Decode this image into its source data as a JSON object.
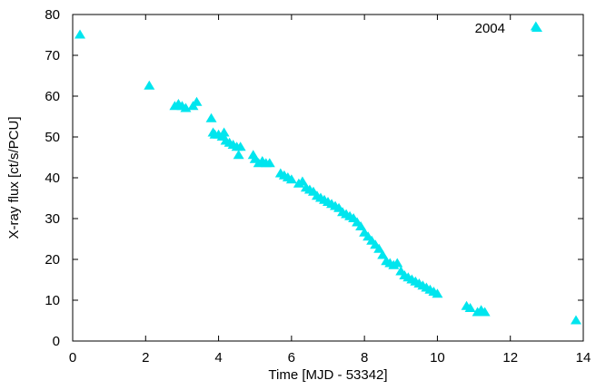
{
  "chart_data": {
    "type": "scatter",
    "xlabel": "Time [MJD - 53342]",
    "ylabel": "X-ray flux [ct/s/PCU]",
    "xlim": [
      0,
      14
    ],
    "ylim": [
      0,
      80
    ],
    "x_ticks": [
      "0",
      "2",
      "4",
      "6",
      "8",
      "10",
      "12",
      "14"
    ],
    "y_ticks": [
      "0",
      "10",
      "20",
      "30",
      "40",
      "50",
      "60",
      "70",
      "80"
    ],
    "grid": false,
    "legend_position": "top-right",
    "marker": "triangle",
    "series": [
      {
        "name": "2004",
        "color": "#00e5ee",
        "points": [
          [
            0.2,
            75.0
          ],
          [
            2.1,
            62.5
          ],
          [
            2.8,
            57.5
          ],
          [
            2.9,
            58.0
          ],
          [
            3.0,
            57.5
          ],
          [
            3.1,
            57.0
          ],
          [
            3.3,
            57.5
          ],
          [
            3.4,
            58.5
          ],
          [
            3.8,
            54.5
          ],
          [
            3.85,
            51.0
          ],
          [
            3.9,
            50.5
          ],
          [
            4.0,
            50.5
          ],
          [
            4.1,
            50.0
          ],
          [
            4.15,
            51.0
          ],
          [
            4.2,
            49.0
          ],
          [
            4.3,
            48.5
          ],
          [
            4.4,
            48.0
          ],
          [
            4.5,
            47.5
          ],
          [
            4.55,
            45.5
          ],
          [
            4.6,
            47.5
          ],
          [
            4.95,
            45.5
          ],
          [
            5.0,
            44.5
          ],
          [
            5.1,
            43.5
          ],
          [
            5.2,
            44.0
          ],
          [
            5.3,
            43.5
          ],
          [
            5.4,
            43.5
          ],
          [
            5.7,
            41.0
          ],
          [
            5.8,
            40.5
          ],
          [
            5.9,
            40.0
          ],
          [
            6.0,
            39.5
          ],
          [
            6.2,
            38.5
          ],
          [
            6.3,
            39.0
          ],
          [
            6.4,
            37.5
          ],
          [
            6.5,
            37.0
          ],
          [
            6.6,
            36.5
          ],
          [
            6.7,
            35.5
          ],
          [
            6.8,
            35.0
          ],
          [
            6.9,
            34.5
          ],
          [
            7.0,
            34.0
          ],
          [
            7.1,
            33.5
          ],
          [
            7.2,
            33.0
          ],
          [
            7.3,
            32.5
          ],
          [
            7.4,
            31.5
          ],
          [
            7.5,
            31.0
          ],
          [
            7.6,
            30.5
          ],
          [
            7.7,
            30.0
          ],
          [
            7.8,
            29.0
          ],
          [
            7.9,
            28.0
          ],
          [
            8.0,
            26.5
          ],
          [
            8.1,
            25.5
          ],
          [
            8.2,
            24.5
          ],
          [
            8.3,
            23.5
          ],
          [
            8.4,
            22.5
          ],
          [
            8.5,
            21.0
          ],
          [
            8.6,
            19.5
          ],
          [
            8.7,
            19.0
          ],
          [
            8.8,
            18.5
          ],
          [
            8.9,
            19.0
          ],
          [
            9.0,
            17.0
          ],
          [
            9.1,
            16.0
          ],
          [
            9.2,
            15.5
          ],
          [
            9.3,
            15.0
          ],
          [
            9.4,
            14.5
          ],
          [
            9.5,
            14.0
          ],
          [
            9.6,
            13.5
          ],
          [
            9.7,
            13.0
          ],
          [
            9.8,
            12.5
          ],
          [
            9.9,
            12.0
          ],
          [
            10.0,
            11.5
          ],
          [
            10.8,
            8.5
          ],
          [
            10.9,
            8.0
          ],
          [
            11.1,
            7.0
          ],
          [
            11.2,
            7.5
          ],
          [
            11.3,
            7.0
          ],
          [
            12.7,
            77.0
          ],
          [
            13.8,
            5.0
          ]
        ]
      }
    ]
  }
}
